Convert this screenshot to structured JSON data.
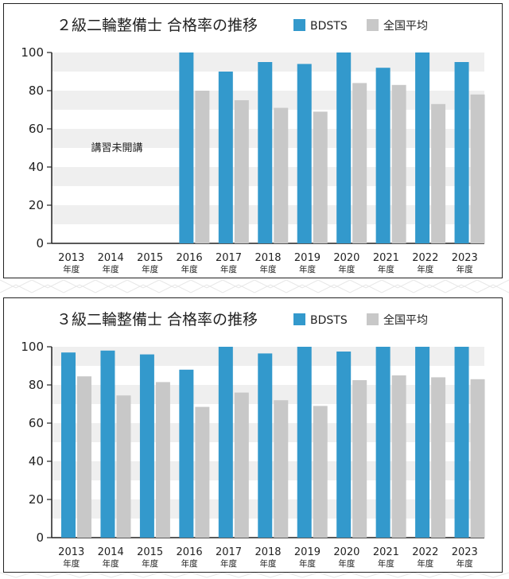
{
  "colors": {
    "bdsts": "#3399cc",
    "national": "#c8c8c8",
    "stripe": "#efefef"
  },
  "chart_data": [
    {
      "type": "bar",
      "title": "２級二輪整備士 合格率の推移",
      "categories": [
        "2013",
        "2014",
        "2015",
        "2016",
        "2017",
        "2018",
        "2019",
        "2020",
        "2021",
        "2022",
        "2023"
      ],
      "category_sub": "年度",
      "series": [
        {
          "name": "BDSTS",
          "values": [
            null,
            null,
            null,
            100,
            90,
            95,
            94,
            100,
            92,
            100,
            95
          ]
        },
        {
          "name": "全国平均",
          "values": [
            null,
            null,
            null,
            80,
            75,
            71,
            69,
            84,
            83,
            73,
            78
          ]
        }
      ],
      "yticks": [
        0,
        20,
        40,
        60,
        80,
        100
      ],
      "ylim": [
        0,
        100
      ],
      "annotation": "講習未開講",
      "legend": "top-right"
    },
    {
      "type": "bar",
      "title": "３級二輪整備士 合格率の推移",
      "categories": [
        "2013",
        "2014",
        "2015",
        "2016",
        "2017",
        "2018",
        "2019",
        "2020",
        "2021",
        "2022",
        "2023"
      ],
      "category_sub": "年度",
      "series": [
        {
          "name": "BDSTS",
          "values": [
            97,
            98,
            96,
            88,
            100,
            96.5,
            100,
            97.5,
            100,
            100,
            100
          ]
        },
        {
          "name": "全国平均",
          "values": [
            84.5,
            74.5,
            81.5,
            68.5,
            76,
            72,
            69,
            82.5,
            85,
            84,
            83
          ]
        }
      ],
      "yticks": [
        0,
        20,
        40,
        60,
        80,
        100
      ],
      "ylim": [
        0,
        100
      ],
      "legend": "top-right"
    }
  ]
}
